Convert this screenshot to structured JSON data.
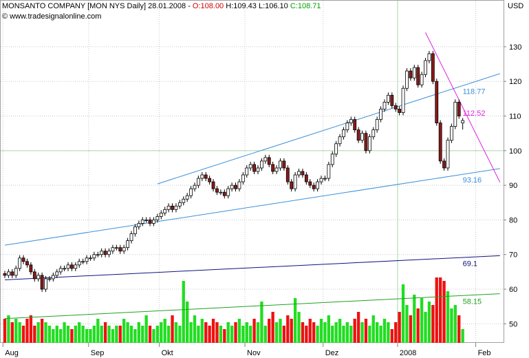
{
  "chart_data": {
    "type": "candlestick",
    "header": {
      "name": "MONSANTO COMPANY [MON NYS  Daily] 28.01.2008 -",
      "open": "O:108.00",
      "high": "H:109.43",
      "low": "L:106.10",
      "close": "C:108.71"
    },
    "watermark": "© www.tradesignalonline.com",
    "y_unit": "USD",
    "categories": [
      "Aug",
      null,
      null,
      null,
      null,
      null,
      null,
      null,
      null,
      null,
      null,
      null,
      null,
      null,
      null,
      null,
      null,
      null,
      null,
      null,
      null,
      null,
      null,
      "Sep",
      null,
      null,
      null,
      null,
      null,
      null,
      null,
      null,
      null,
      null,
      null,
      null,
      null,
      null,
      null,
      null,
      null,
      null,
      "Okt",
      null,
      null,
      null,
      null,
      null,
      null,
      null,
      null,
      null,
      null,
      null,
      null,
      null,
      null,
      null,
      null,
      null,
      null,
      null,
      null,
      null,
      null,
      "Nov",
      null,
      null,
      null,
      null,
      null,
      null,
      null,
      null,
      null,
      null,
      null,
      null,
      null,
      null,
      null,
      null,
      null,
      null,
      null,
      null,
      "Dez",
      null,
      null,
      null,
      null,
      null,
      null,
      null,
      null,
      null,
      null,
      null,
      null,
      null,
      null,
      null,
      null,
      null,
      null,
      null,
      "2008",
      null,
      null,
      null,
      null,
      null,
      null,
      null,
      null,
      null,
      null,
      null,
      null,
      null,
      null,
      null,
      null,
      null,
      null,
      null,
      null,
      "Feb",
      null,
      null,
      null,
      null,
      null,
      null
    ],
    "open": [
      64.5,
      64,
      65,
      64,
      66,
      69,
      68,
      67,
      65,
      63,
      64,
      60,
      63,
      63,
      64,
      65,
      66,
      66,
      67,
      66,
      67,
      68,
      68,
      69,
      69,
      70,
      70,
      71,
      70,
      71,
      72,
      72,
      71,
      72,
      74,
      76,
      78,
      79,
      80,
      80,
      79,
      80,
      81,
      82,
      83,
      84,
      83,
      84,
      85,
      86,
      87,
      89,
      90,
      92,
      93,
      92,
      91,
      89,
      88,
      88,
      87,
      89,
      90,
      89,
      91,
      93,
      95,
      96,
      94,
      95,
      97,
      98,
      96,
      94,
      95,
      97,
      95,
      91,
      89,
      93,
      94,
      93,
      91,
      90,
      89,
      91,
      92,
      92,
      96,
      99,
      102,
      104,
      106,
      108,
      109,
      106,
      103,
      105,
      100,
      104,
      106,
      109,
      112,
      114,
      116,
      113,
      112,
      111,
      118,
      123,
      121,
      124,
      119,
      122,
      126,
      128,
      120,
      108,
      97,
      95,
      103,
      107,
      114,
      108,
      null,
      null,
      null,
      null,
      null,
      null,
      null,
      null,
      null,
      null
    ],
    "high": [
      65.3,
      65.8,
      65.8,
      66.8,
      69.8,
      69.8,
      68.8,
      67.8,
      65.8,
      64.8,
      64.8,
      63.8,
      63.8,
      64.8,
      65.8,
      66.8,
      66.8,
      67.8,
      67.8,
      67.8,
      68.8,
      68.8,
      69.8,
      69.8,
      70.8,
      70.8,
      71.8,
      71.8,
      71.8,
      72.8,
      72.8,
      72.8,
      72.8,
      74.8,
      76.8,
      78.8,
      79.8,
      80.8,
      80.8,
      80.8,
      80.8,
      81.8,
      82.8,
      83.8,
      84.8,
      84.8,
      84.8,
      85.8,
      86.8,
      87.8,
      89.8,
      90.8,
      92.8,
      93.8,
      93.8,
      92.8,
      91.8,
      89.8,
      88.8,
      88.8,
      89.8,
      90.8,
      90.8,
      91.8,
      93.8,
      95.8,
      96.8,
      96.8,
      95.8,
      97.8,
      98.8,
      98.8,
      96.8,
      95.8,
      97.8,
      97.8,
      95.8,
      91.8,
      93.8,
      94.8,
      94.8,
      93.8,
      91.8,
      90.8,
      91.8,
      92.8,
      92.8,
      96.8,
      99.8,
      102.8,
      104.8,
      106.8,
      108.8,
      109.8,
      109.8,
      106.8,
      105.8,
      105.8,
      104.8,
      106.8,
      109.8,
      112.8,
      114.8,
      116.8,
      116.8,
      113.8,
      112.8,
      118.8,
      123.8,
      123.8,
      124.8,
      124.8,
      122.8,
      126.8,
      128.8,
      128.8,
      120.8,
      108.8,
      97.8,
      103.8,
      107.8,
      114.8,
      114.8,
      109.43,
      null,
      null,
      null,
      null,
      null,
      null,
      null,
      null,
      null,
      null
    ],
    "low": [
      63.2,
      63.2,
      63.2,
      63.2,
      65.2,
      67.2,
      66.2,
      64.2,
      62.2,
      62.2,
      59.2,
      59.2,
      62.2,
      62.2,
      63.2,
      64.2,
      65.2,
      65.2,
      65.2,
      65.2,
      66.2,
      67.2,
      67.2,
      68.2,
      68.2,
      69.2,
      69.2,
      69.2,
      69.2,
      70.2,
      71.2,
      70.2,
      70.2,
      71.2,
      73.2,
      75.2,
      77.2,
      78.2,
      79.2,
      78.2,
      78.2,
      79.2,
      80.2,
      81.2,
      82.2,
      82.2,
      82.2,
      83.2,
      84.2,
      85.2,
      86.2,
      88.2,
      89.2,
      91.2,
      91.2,
      90.2,
      88.2,
      87.2,
      87.2,
      86.2,
      86.2,
      88.2,
      88.2,
      88.2,
      90.2,
      92.2,
      94.2,
      93.2,
      93.2,
      94.2,
      96.2,
      95.2,
      93.2,
      93.2,
      94.2,
      94.2,
      90.2,
      88.2,
      88.2,
      92.2,
      92.2,
      90.2,
      89.2,
      88.2,
      88.2,
      90.2,
      91.2,
      91.2,
      95.2,
      98.2,
      101.2,
      103.2,
      105.2,
      107.2,
      105.2,
      102.2,
      102.2,
      99.2,
      99.2,
      103.2,
      105.2,
      108.2,
      111.2,
      113.2,
      112.2,
      111.2,
      110.2,
      110.2,
      117.2,
      120.2,
      120.2,
      118.2,
      118.2,
      121.2,
      125.2,
      119.2,
      107.2,
      96.2,
      94.2,
      94.2,
      102.2,
      106.2,
      109.2,
      106.1,
      null,
      null,
      null,
      null,
      null,
      null,
      null,
      null,
      null,
      null
    ],
    "close": [
      64,
      65,
      64,
      66,
      69,
      68,
      67,
      65,
      63,
      64,
      60,
      63,
      63,
      64,
      65,
      66,
      66,
      67,
      66,
      67,
      68,
      68,
      69,
      69,
      70,
      70,
      71,
      70,
      71,
      72,
      72,
      71,
      72,
      74,
      76,
      78,
      79,
      80,
      80,
      79,
      80,
      81,
      82,
      83,
      84,
      83,
      84,
      85,
      86,
      87,
      89,
      90,
      92,
      93,
      92,
      91,
      89,
      88,
      88,
      87,
      89,
      90,
      89,
      91,
      93,
      95,
      96,
      94,
      95,
      97,
      98,
      96,
      94,
      95,
      97,
      95,
      91,
      89,
      93,
      94,
      93,
      91,
      90,
      89,
      91,
      92,
      92,
      96,
      99,
      102,
      104,
      106,
      108,
      109,
      106,
      103,
      105,
      100,
      104,
      106,
      109,
      112,
      114,
      116,
      113,
      112,
      111,
      118,
      123,
      121,
      124,
      119,
      122,
      126,
      128,
      120,
      108,
      97,
      95,
      103,
      107,
      114,
      110,
      108.71,
      null,
      null,
      null,
      null,
      null,
      null,
      null,
      null,
      null,
      null
    ],
    "volume": [
      7,
      8,
      6,
      7,
      6,
      5,
      7,
      8,
      5,
      6,
      7,
      6,
      5,
      4,
      5,
      4,
      6,
      5,
      4,
      5,
      6,
      5,
      4,
      4,
      5,
      7,
      5,
      6,
      5,
      4,
      5,
      5,
      7,
      6,
      5,
      4,
      6,
      5,
      8,
      5,
      4,
      5,
      6,
      7,
      5,
      8,
      6,
      5,
      18,
      12,
      6,
      8,
      5,
      7,
      6,
      5,
      7,
      6,
      5,
      4,
      6,
      5,
      6,
      7,
      5,
      6,
      5,
      7,
      6,
      12,
      5,
      7,
      9,
      6,
      7,
      5,
      8,
      7,
      13,
      9,
      6,
      5,
      7,
      6,
      5,
      7,
      6,
      8,
      5,
      6,
      7,
      5,
      6,
      5,
      7,
      9,
      6,
      7,
      5,
      8,
      6,
      5,
      7,
      6,
      4,
      6,
      9,
      17,
      11,
      8,
      14,
      10,
      13,
      9,
      12,
      11,
      19,
      19,
      18,
      15,
      10,
      11,
      8,
      4,
      null,
      null,
      null,
      null,
      null,
      null,
      null,
      null,
      null,
      null
    ],
    "volume_lim": [
      0,
      20
    ],
    "up_color": "#ffffff",
    "down_color": "#8b1a1a",
    "volume_up_color": "#22dd22",
    "volume_down_color": "#ee1111",
    "ylim": [
      44.5,
      143.5
    ],
    "yticks": [
      50,
      60,
      70,
      80,
      90,
      100,
      110,
      120,
      130
    ],
    "grid": true,
    "crosshair": {
      "y": 100,
      "x": 106,
      "color": "#a8d8a8"
    },
    "trendlines": [
      {
        "points": [
          [
            0,
            72.7
          ],
          [
            133,
            94.82
          ]
        ],
        "color": "#3a8fd8",
        "label": 93.16
      },
      {
        "points": [
          [
            41,
            90.4
          ],
          [
            133,
            122.23
          ]
        ],
        "color": "#3a8fd8",
        "label": 118.77
      },
      {
        "points": [
          [
            113,
            134.1
          ],
          [
            133,
            90.9
          ]
        ],
        "color": "#e020e0",
        "label": 112.52
      },
      {
        "points": [
          [
            0,
            62.7
          ],
          [
            133,
            69.67
          ]
        ],
        "color": "#101080",
        "label": 69.1
      },
      {
        "points": [
          [
            0,
            51.5
          ],
          [
            133,
            58.7
          ]
        ],
        "color": "#20a020",
        "label": 58.15
      }
    ],
    "label_index": 123
  }
}
